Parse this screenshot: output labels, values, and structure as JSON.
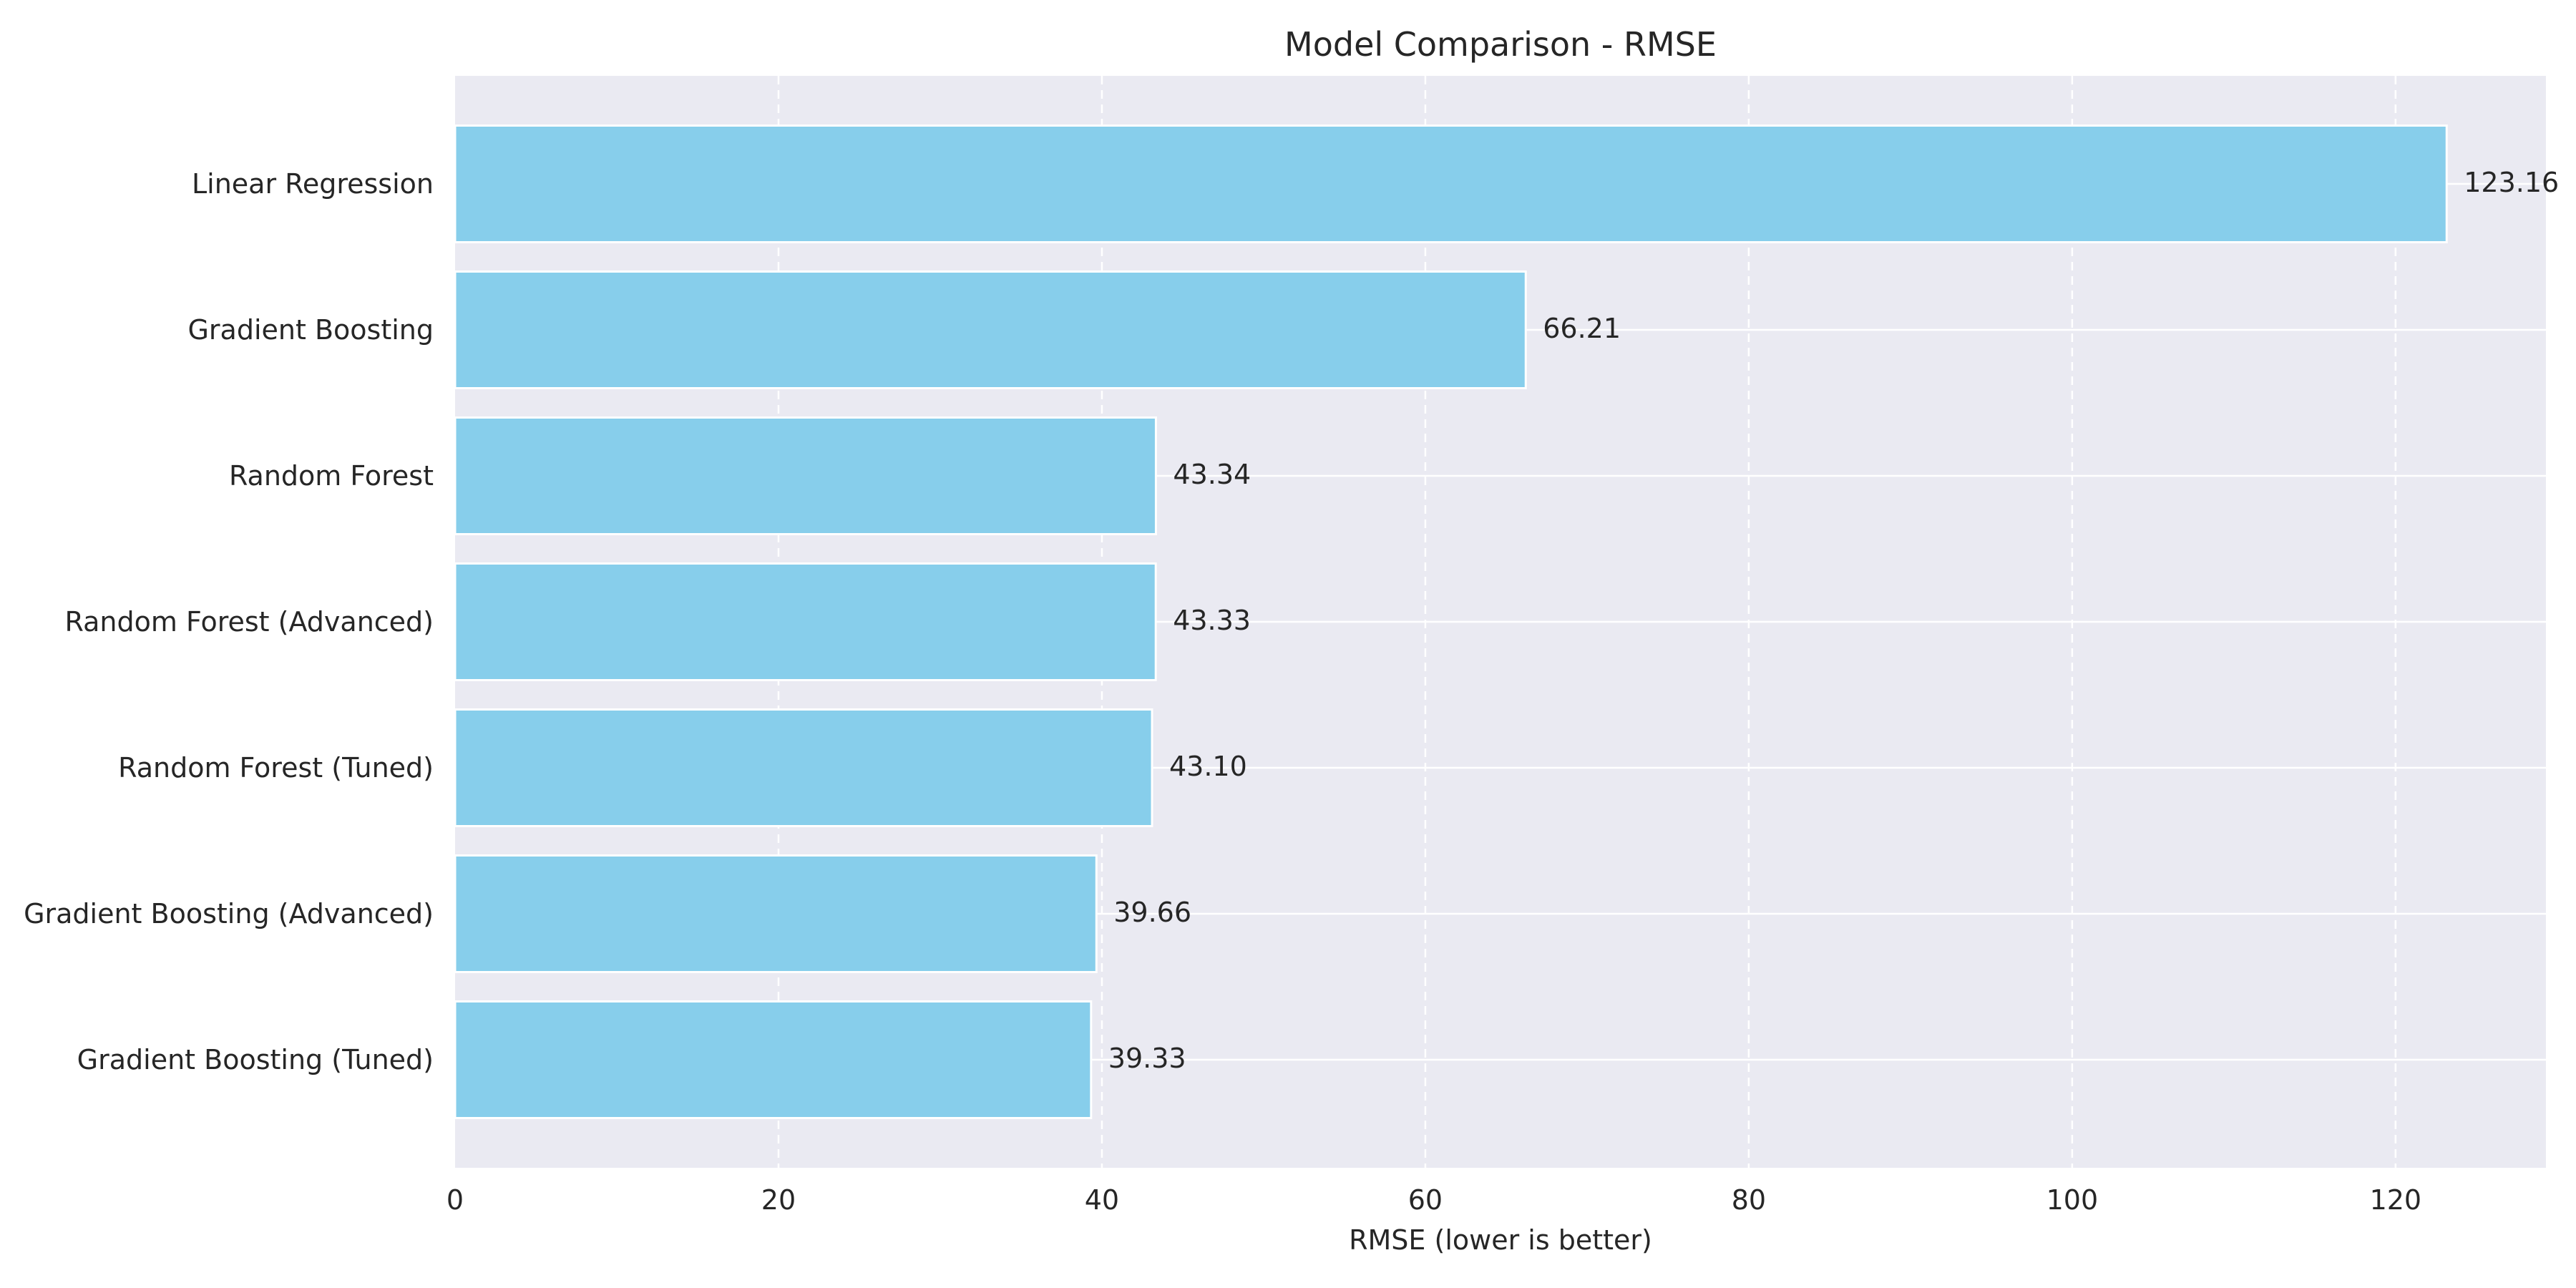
{
  "chart_data": {
    "type": "bar",
    "orientation": "horizontal",
    "title": "Model Comparison - RMSE",
    "xlabel": "RMSE (lower is better)",
    "ylabel": "",
    "categories": [
      "Linear Regression",
      "Gradient Boosting",
      "Random Forest",
      "Random Forest (Advanced)",
      "Random Forest (Tuned)",
      "Gradient Boosting (Advanced)",
      "Gradient Boosting (Tuned)"
    ],
    "values": [
      123.16,
      66.21,
      43.34,
      43.33,
      43.1,
      39.66,
      39.33
    ],
    "value_labels": [
      "123.16",
      "66.21",
      "43.34",
      "43.33",
      "43.10",
      "39.66",
      "39.33"
    ],
    "xlim": [
      0,
      129.3
    ],
    "xticks": [
      0,
      20,
      40,
      60,
      80,
      100,
      120
    ],
    "grid": true,
    "colors": {
      "bar": "#87CEEB",
      "bar_edge": "#ffffff",
      "plot_background": "#EAEAF2",
      "grid": "#ffffff"
    }
  }
}
